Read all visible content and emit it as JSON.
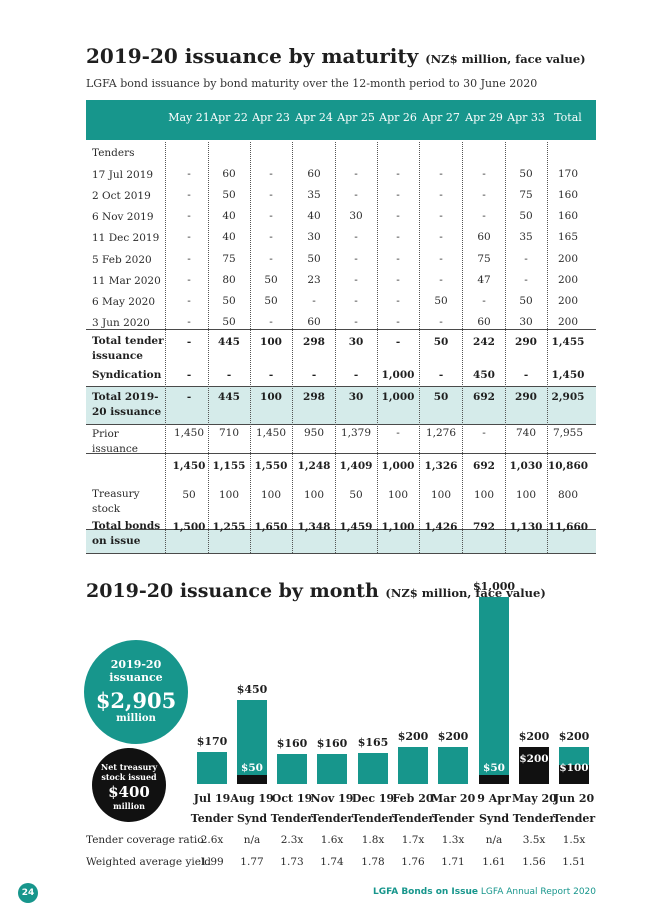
{
  "maturity": {
    "title": "2019-20 issuance by maturity",
    "title_unit": "(NZ$ million, face value)",
    "subtitle": "LGFA bond issuance by bond maturity over the 12-month period to 30 June 2020",
    "columns": [
      "May 21",
      "Apr 22",
      "Apr 23",
      "Apr 24",
      "Apr 25",
      "Apr 26",
      "Apr 27",
      "Apr 29",
      "Apr 33",
      "Total"
    ],
    "tenders_heading": "Tenders",
    "tender_rows": [
      {
        "label": "17 Jul 2019",
        "values": [
          "-",
          "60",
          "-",
          "60",
          "-",
          "-",
          "-",
          "-",
          "50",
          "170"
        ]
      },
      {
        "label": "2 Oct 2019",
        "values": [
          "-",
          "50",
          "-",
          "35",
          "-",
          "-",
          "-",
          "-",
          "75",
          "160"
        ]
      },
      {
        "label": "6 Nov 2019",
        "values": [
          "-",
          "40",
          "-",
          "40",
          "30",
          "-",
          "-",
          "-",
          "50",
          "160"
        ]
      },
      {
        "label": "11 Dec 2019",
        "values": [
          "-",
          "40",
          "-",
          "30",
          "-",
          "-",
          "-",
          "60",
          "35",
          "165"
        ]
      },
      {
        "label": "5 Feb 2020",
        "values": [
          "-",
          "75",
          "-",
          "50",
          "-",
          "-",
          "-",
          "75",
          "-",
          "200"
        ]
      },
      {
        "label": "11 Mar 2020",
        "values": [
          "-",
          "80",
          "50",
          "23",
          "-",
          "-",
          "-",
          "47",
          "-",
          "200"
        ]
      },
      {
        "label": "6 May 2020",
        "values": [
          "-",
          "50",
          "50",
          "-",
          "-",
          "-",
          "50",
          "-",
          "50",
          "200"
        ]
      },
      {
        "label": "3 Jun 2020",
        "values": [
          "-",
          "50",
          "-",
          "60",
          "-",
          "-",
          "-",
          "60",
          "30",
          "200"
        ]
      }
    ],
    "total_tender": {
      "label": "Total tender issuance",
      "values": [
        "-",
        "445",
        "100",
        "298",
        "30",
        "-",
        "50",
        "242",
        "290",
        "1,455"
      ]
    },
    "syndication": {
      "label": "Syndication",
      "values": [
        "-",
        "-",
        "-",
        "-",
        "-",
        "1,000",
        "-",
        "450",
        "-",
        "1,450"
      ]
    },
    "total_2019_20": {
      "label": "Total 2019-20 issuance",
      "values": [
        "-",
        "445",
        "100",
        "298",
        "30",
        "1,000",
        "50",
        "692",
        "290",
        "2,905"
      ]
    },
    "prior": {
      "label": "Prior issuance",
      "values": [
        "1,450",
        "710",
        "1,450",
        "950",
        "1,379",
        "-",
        "1,276",
        "-",
        "740",
        "7,955"
      ]
    },
    "subtotal": {
      "label": "",
      "values": [
        "1,450",
        "1,155",
        "1,550",
        "1,248",
        "1,409",
        "1,000",
        "1,326",
        "692",
        "1,030",
        "10,860"
      ]
    },
    "treasury": {
      "label": "Treasury stock",
      "values": [
        "50",
        "100",
        "100",
        "100",
        "50",
        "100",
        "100",
        "100",
        "100",
        "800"
      ]
    },
    "total_bonds": {
      "label": "Total bonds on issue",
      "values": [
        "1,500",
        "1,255",
        "1,650",
        "1,348",
        "1,459",
        "1,100",
        "1,426",
        "792",
        "1,130",
        "11,660"
      ]
    }
  },
  "month": {
    "title": "2019-20 issuance by month",
    "title_unit": "(NZ$ million, face value)",
    "issuance_circle": {
      "line1": "2019-20",
      "line2": "issuance",
      "amount": "$2,905",
      "unit": "million"
    },
    "treasury_circle": {
      "line1": "Net treasury",
      "line2": "stock issued",
      "amount": "$400",
      "unit": "million"
    },
    "footer_rows": {
      "coverage_label": "Tender coverage ratio",
      "yield_label": "Weighted average yield"
    }
  },
  "chart_data": {
    "type": "bar",
    "title": "2019-20 issuance by month",
    "categories": [
      "Jul 19",
      "Aug 19",
      "Oct 19",
      "Nov 19",
      "Dec 19",
      "Feb 20",
      "Mar 20",
      "9 Apr",
      "May 20",
      "Jun 20"
    ],
    "types": [
      "Tender",
      "Synd",
      "Tender",
      "Tender",
      "Tender",
      "Tender",
      "Tender",
      "Synd",
      "Tender",
      "Tender"
    ],
    "series": [
      {
        "name": "Issuance",
        "values": [
          170,
          450,
          160,
          160,
          165,
          200,
          200,
          1000,
          200,
          200
        ],
        "labels": [
          "$170",
          "$450",
          "$160",
          "$160",
          "$165",
          "$200",
          "$200",
          "$1,000",
          "$200",
          "$200"
        ]
      },
      {
        "name": "Net treasury stock issued",
        "values": [
          0,
          50,
          0,
          0,
          0,
          0,
          0,
          50,
          200,
          100
        ],
        "labels": [
          "",
          "$50",
          "",
          "",
          "",
          "",
          "",
          "$50",
          "$200",
          "$100"
        ]
      }
    ],
    "coverage_ratio": [
      "2.6x",
      "n/a",
      "2.3x",
      "1.6x",
      "1.8x",
      "1.7x",
      "1.3x",
      "n/a",
      "3.5x",
      "1.5x"
    ],
    "weighted_avg_yield": [
      "1.99",
      "1.77",
      "1.73",
      "1.74",
      "1.78",
      "1.76",
      "1.71",
      "1.61",
      "1.56",
      "1.51"
    ],
    "ylim": [
      0,
      1000
    ],
    "colors": {
      "issuance": "#17968c",
      "treasury": "#111111"
    }
  },
  "footer": {
    "page_number": "24",
    "section": "LGFA Bonds on Issue",
    "doc": "LGFA Annual Report 2020"
  }
}
